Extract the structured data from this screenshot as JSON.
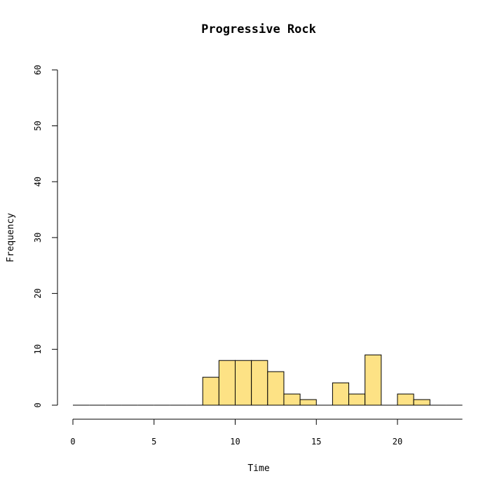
{
  "chart_data": {
    "type": "bar",
    "title": "Progressive Rock",
    "xlabel": "Time",
    "ylabel": "Frequency",
    "bin_width": 1,
    "bins": [
      {
        "start": 0,
        "end": 1,
        "count": 0
      },
      {
        "start": 1,
        "end": 2,
        "count": 0
      },
      {
        "start": 2,
        "end": 3,
        "count": 0
      },
      {
        "start": 3,
        "end": 4,
        "count": 0
      },
      {
        "start": 4,
        "end": 5,
        "count": 0
      },
      {
        "start": 5,
        "end": 6,
        "count": 0
      },
      {
        "start": 6,
        "end": 7,
        "count": 0
      },
      {
        "start": 7,
        "end": 8,
        "count": 0
      },
      {
        "start": 8,
        "end": 9,
        "count": 5
      },
      {
        "start": 9,
        "end": 10,
        "count": 8
      },
      {
        "start": 10,
        "end": 11,
        "count": 8
      },
      {
        "start": 11,
        "end": 12,
        "count": 8
      },
      {
        "start": 12,
        "end": 13,
        "count": 6
      },
      {
        "start": 13,
        "end": 14,
        "count": 2
      },
      {
        "start": 14,
        "end": 15,
        "count": 1
      },
      {
        "start": 15,
        "end": 16,
        "count": 0
      },
      {
        "start": 16,
        "end": 17,
        "count": 4
      },
      {
        "start": 17,
        "end": 18,
        "count": 2
      },
      {
        "start": 18,
        "end": 19,
        "count": 9
      },
      {
        "start": 19,
        "end": 20,
        "count": 0
      },
      {
        "start": 20,
        "end": 21,
        "count": 2
      },
      {
        "start": 21,
        "end": 22,
        "count": 1
      },
      {
        "start": 22,
        "end": 23,
        "count": 0
      },
      {
        "start": 23,
        "end": 24,
        "count": 0
      }
    ],
    "xlim": [
      0,
      24
    ],
    "ylim": [
      0,
      60
    ],
    "x_ticks": [
      0,
      5,
      10,
      15,
      20
    ],
    "y_ticks": [
      0,
      10,
      20,
      30,
      40,
      50,
      60
    ],
    "grid": false,
    "bar_color": "#FDE285",
    "edge_color": "#000000"
  }
}
